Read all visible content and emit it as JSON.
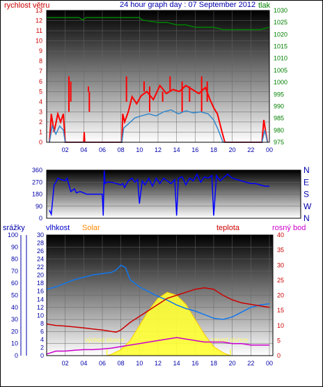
{
  "header": {
    "wind_label": "rychlost větru",
    "title": "24 hour graph day : 07 September 2012",
    "pressure_label": "tlak"
  },
  "colors": {
    "wind": "#ff0000",
    "gust_mean": "#3388cc",
    "pressure": "#008000",
    "direction": "#0000ff",
    "humidity": "#1177ee",
    "temperature": "#cc0000",
    "dewpoint": "#cc00cc",
    "solar": "#ffff33",
    "rain": "#0000ff",
    "axis_blue": "#0000aa",
    "axis_red": "#cc0000",
    "orange": "#ff8800"
  },
  "chart_data": [
    {
      "type": "line",
      "name": "wind-pressure",
      "xlabel": "",
      "ylabel": "rychlost větru",
      "x_ticks": [
        "02",
        "04",
        "06",
        "08",
        "10",
        "12",
        "14",
        "16",
        "18",
        "20",
        "22",
        "00"
      ],
      "y_ticks_left": [
        "0",
        "1",
        "2",
        "3",
        "4",
        "5",
        "6",
        "7",
        "8",
        "9",
        "10",
        "11",
        "12",
        "13"
      ],
      "y_ticks_right": [
        "975",
        "980",
        "985",
        "990",
        "995",
        "1000",
        "1005",
        "1010",
        "1015",
        "1020",
        "1025",
        "1030"
      ],
      "ylim_left": [
        0,
        13
      ],
      "ylim_right": [
        975,
        1030
      ],
      "series": [
        {
          "name": "rychlost větru",
          "axis": "left",
          "x": [
            0.3,
            0.5,
            0.8,
            1.2,
            1.5,
            1.8,
            2.0,
            2.2,
            4.0,
            4.05,
            4.1,
            8.1,
            8.2,
            8.4,
            8.8,
            9.2,
            9.7,
            10.2,
            10.8,
            11.5,
            12.2,
            12.9,
            13.6,
            14.3,
            15.0,
            15.7,
            16.4,
            17.1,
            17.6,
            18.0,
            18.4,
            18.9,
            19.2,
            19.5,
            23.2,
            23.4,
            23.6,
            23.8
          ],
          "y": [
            0,
            2.8,
            1.0,
            2.8,
            2.0,
            2.8,
            0,
            0,
            0,
            1.0,
            0,
            0,
            2.8,
            2.0,
            3.0,
            4.5,
            3.8,
            4.6,
            5.0,
            4.2,
            5.6,
            4.8,
            5.2,
            5.0,
            5.6,
            5.2,
            4.8,
            5.4,
            4.2,
            3.4,
            2.8,
            1.0,
            0,
            0,
            0,
            2.2,
            1.0,
            0
          ],
          "x_extra_gusts": [
            2.4,
            2.6,
            4.5,
            4.6,
            8.6,
            10.5,
            11.1,
            12.5,
            13.3,
            14.6,
            15.4,
            16.0,
            16.7,
            17.3
          ]
        },
        {
          "name": "",
          "axis": "left",
          "x": [
            0.3,
            0.6,
            1.0,
            1.4,
            1.8,
            2.0,
            8.1,
            8.3,
            8.8,
            9.5,
            10.2,
            11.0,
            11.8,
            12.6,
            13.4,
            14.2,
            15.0,
            15.8,
            16.6,
            17.4,
            18.0,
            18.5,
            19.0,
            23.2,
            23.5,
            23.8
          ],
          "y": [
            0,
            1.6,
            0.8,
            1.6,
            1.2,
            0,
            0,
            1.4,
            1.8,
            2.4,
            2.6,
            2.8,
            2.6,
            3.0,
            3.2,
            2.8,
            3.1,
            2.9,
            3.0,
            2.8,
            2.2,
            1.2,
            0,
            0,
            1.2,
            0
          ]
        },
        {
          "name": "tlak",
          "axis": "right",
          "x": [
            0,
            2,
            3.5,
            3.9,
            4.2,
            6,
            8,
            9,
            10,
            10.3,
            12,
            13,
            14,
            15,
            16,
            17,
            18,
            19,
            20,
            21,
            22,
            23,
            24
          ],
          "y": [
            1027,
            1027,
            1027,
            1026,
            1027,
            1027,
            1027,
            1027,
            1027,
            1026,
            1025,
            1025,
            1024,
            1024,
            1023,
            1023,
            1023,
            1022,
            1022,
            1022,
            1022,
            1022,
            1023
          ]
        }
      ]
    },
    {
      "type": "line",
      "name": "wind-direction",
      "y_ticks_left": [
        "0",
        "90",
        "180",
        "270",
        "360"
      ],
      "y_labels_right": [
        "N",
        "W",
        "S",
        "E",
        "N"
      ],
      "ylim": [
        0,
        360
      ],
      "series": [
        {
          "name": "",
          "x": [
            0.3,
            0.5,
            0.8,
            1.0,
            1.2,
            1.5,
            2.0,
            2.2,
            2.6,
            3.0,
            3.2,
            3.6,
            4.0,
            4.3,
            5.0,
            5.5,
            6.0,
            6.1,
            6.2,
            6.3,
            6.5,
            7.0,
            7.5,
            8.0,
            8.2,
            8.4,
            8.8,
            9.2,
            9.5,
            9.8,
            10.0,
            10.3,
            10.6,
            11.0,
            11.4,
            11.8,
            12.2,
            12.6,
            13.0,
            13.4,
            13.8,
            14.0,
            14.2,
            14.6,
            15.0,
            15.4,
            15.8,
            16.2,
            16.6,
            17.0,
            17.4,
            17.8,
            18.0,
            18.3,
            18.7,
            19.0,
            19.5,
            20.0,
            20.5,
            21.0,
            21.5,
            22.0,
            22.5,
            23.0,
            23.5,
            24.0
          ],
          "y": [
            60,
            30,
            250,
            270,
            300,
            290,
            280,
            300,
            200,
            220,
            190,
            200,
            190,
            180,
            180,
            180,
            180,
            20,
            360,
            260,
            270,
            270,
            260,
            250,
            260,
            230,
            280,
            300,
            270,
            290,
            110,
            280,
            250,
            300,
            240,
            300,
            260,
            300,
            280,
            260,
            290,
            20,
            300,
            310,
            250,
            300,
            280,
            330,
            270,
            310,
            300,
            320,
            20,
            320,
            280,
            300,
            330,
            300,
            290,
            280,
            270,
            260,
            260,
            250,
            240,
            240
          ]
        }
      ]
    },
    {
      "type": "area",
      "name": "humidity-temperature-solar",
      "x_ticks": [
        "02",
        "04",
        "06",
        "08",
        "10",
        "12",
        "14",
        "16",
        "18",
        "20",
        "22",
        "00"
      ],
      "y_ticks_rain": [
        "0",
        "2",
        "4",
        "6",
        "8",
        "10",
        "12",
        "14",
        "16",
        "18",
        "20",
        "22",
        "24",
        "26",
        "28",
        "30"
      ],
      "y_ticks_humidity": [
        "0",
        "10",
        "20",
        "30",
        "40",
        "50",
        "60",
        "70",
        "80",
        "90",
        "100"
      ],
      "y_ticks_temperature": [
        "0",
        "5",
        "10",
        "15",
        "20",
        "25",
        "30",
        "35",
        "40"
      ],
      "ylim_humidity": [
        0,
        100
      ],
      "ylim_temperature": [
        0,
        40
      ],
      "labels": {
        "rain": "srážky",
        "humidity": "vlhkost",
        "solar": "Solar",
        "temperature": "teplota",
        "dewpoint": "rosný bod",
        "sunrise": "východ slunce",
        "sunset": "západ slunce"
      },
      "sunrise_x": 6.5,
      "sunset_x": 19.8,
      "series": [
        {
          "name": "vlhkost",
          "axis": "humidity",
          "x": [
            0,
            1,
            2,
            3,
            4,
            5,
            6,
            7,
            7.5,
            8,
            8.5,
            9,
            10,
            11,
            12,
            13,
            14,
            15,
            16,
            17,
            18,
            19,
            20,
            21,
            22,
            23,
            24
          ],
          "y": [
            55,
            57,
            60,
            63,
            65,
            67,
            68,
            69,
            71,
            75,
            73,
            63,
            57,
            53,
            49,
            46,
            42,
            39,
            37,
            34,
            31,
            30,
            32,
            36,
            40,
            42,
            43
          ]
        },
        {
          "name": "teplota",
          "axis": "temperature",
          "x": [
            0,
            1,
            2,
            3,
            4,
            5,
            6,
            7,
            7.5,
            8,
            9,
            10,
            11,
            12,
            13,
            14,
            15,
            16,
            17,
            18,
            19,
            20,
            21,
            22,
            23,
            24
          ],
          "y": [
            10.5,
            10,
            9.8,
            9.5,
            9.2,
            8.8,
            8.5,
            8,
            7.8,
            8.5,
            11,
            13,
            15,
            17,
            19,
            20,
            21,
            22,
            22.5,
            22,
            20,
            18.5,
            17.5,
            17,
            16.5,
            16
          ]
        },
        {
          "name": "rosný bod",
          "axis": "temperature",
          "x": [
            0,
            1,
            2,
            3,
            4,
            5,
            6,
            7,
            8,
            9,
            10,
            11,
            12,
            13,
            14,
            15,
            16,
            17,
            18,
            19,
            20,
            21,
            22,
            23,
            24
          ],
          "y": [
            0.5,
            1.5,
            1.5,
            1.8,
            2,
            2,
            2.2,
            2.5,
            3,
            3.5,
            4,
            4.5,
            5,
            5.5,
            6,
            5.5,
            5,
            4.5,
            4.5,
            4.5,
            4,
            4,
            3.5,
            3.5,
            3.5
          ]
        },
        {
          "name": "Solar",
          "axis": "temperature",
          "x": [
            6.5,
            7,
            8,
            9,
            10,
            11,
            12,
            13,
            14,
            15,
            16,
            17,
            18,
            19,
            19.8
          ],
          "y": [
            0,
            0.5,
            2,
            5,
            10,
            15,
            19,
            21,
            20,
            17,
            12,
            7,
            3,
            1,
            0
          ]
        }
      ]
    }
  ]
}
